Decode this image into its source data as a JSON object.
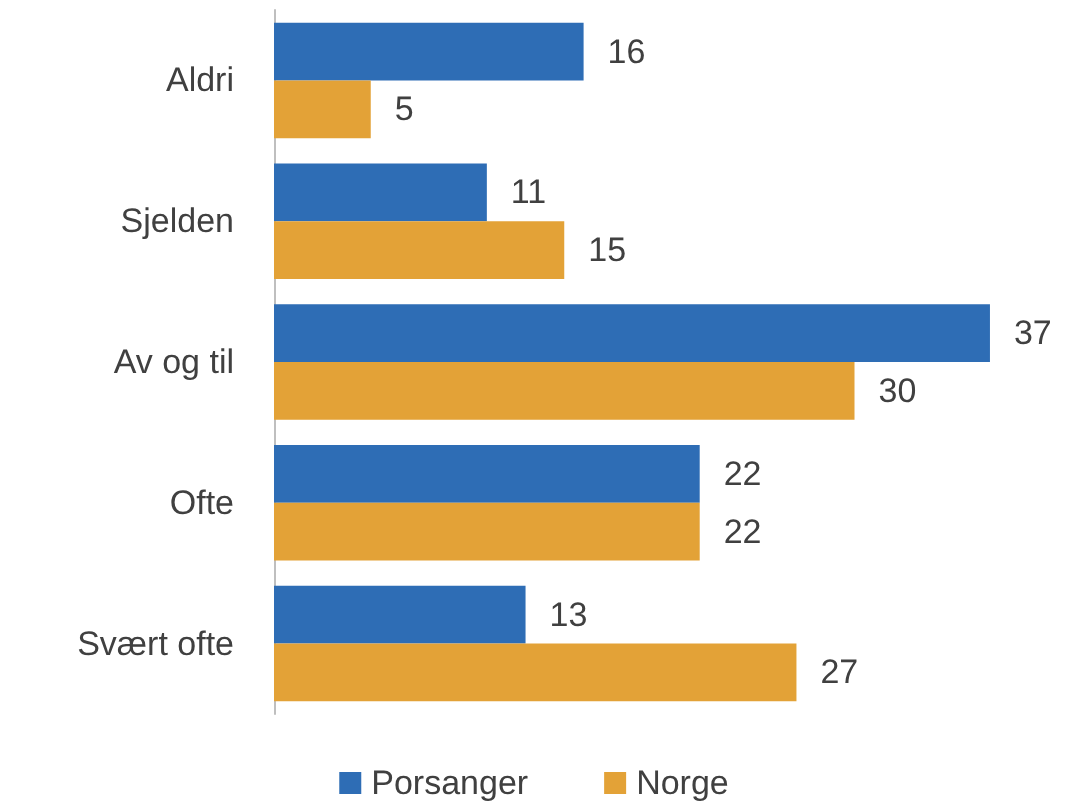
{
  "chart_data": {
    "type": "bar",
    "orientation": "horizontal",
    "categories": [
      "Aldri",
      "Sjelden",
      "Av og til",
      "Ofte",
      "Svært ofte"
    ],
    "series": [
      {
        "name": "Porsanger",
        "color": "#2e6db5",
        "values": [
          16,
          11,
          37,
          22,
          13
        ]
      },
      {
        "name": "Norge",
        "color": "#e3a237",
        "values": [
          5,
          15,
          30,
          22,
          27
        ]
      }
    ],
    "data_labels": true,
    "legend": "bottom",
    "grid": false,
    "tick_labels": "y"
  }
}
